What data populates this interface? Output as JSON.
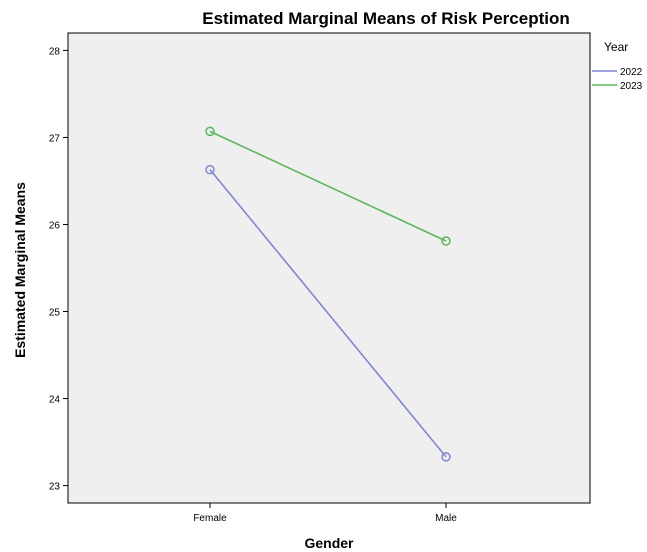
{
  "chart_data": {
    "type": "line",
    "title": "Estimated Marginal Means of Risk Perception",
    "xlabel": "Gender",
    "ylabel": "Estimated Marginal Means",
    "categories": [
      "Female",
      "Male"
    ],
    "ylim": [
      22.8,
      28.2
    ],
    "yticks": [
      "23",
      "24",
      "25",
      "26",
      "27",
      "28"
    ],
    "grid": false,
    "legend": {
      "title": "Year",
      "placement": "right"
    },
    "series": [
      {
        "name": "2022",
        "values": [
          26.63,
          23.33
        ],
        "color": "#7f86d4"
      },
      {
        "name": "2023",
        "values": [
          27.07,
          25.81
        ],
        "color": "#5cb85c"
      }
    ],
    "colors": {
      "plot_background": "#efefef",
      "plot_border": "#000000"
    }
  }
}
